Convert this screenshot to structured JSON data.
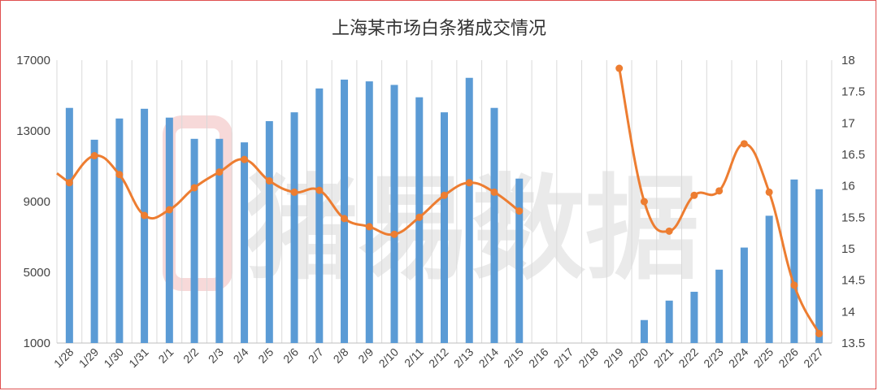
{
  "chart_data": {
    "type": "bar+line",
    "title": "上海某市场白条猪成交情况",
    "categories": [
      "1/28",
      "1/29",
      "1/30",
      "1/31",
      "2/1",
      "2/2",
      "2/3",
      "2/4",
      "2/5",
      "2/6",
      "2/7",
      "2/8",
      "2/9",
      "2/10",
      "2/11",
      "2/12",
      "2/13",
      "2/14",
      "2/15",
      "2/16",
      "2/17",
      "2/18",
      "2/19",
      "2/20",
      "2/21",
      "2/22",
      "2/23",
      "2/24",
      "2/25",
      "2/26",
      "2/27"
    ],
    "series": [
      {
        "type": "bar",
        "axis": "left",
        "color": "#5b9bd5",
        "values": [
          14300,
          12500,
          13700,
          14250,
          13750,
          12550,
          12550,
          12350,
          13550,
          14050,
          15400,
          15900,
          15800,
          15600,
          14900,
          14050,
          16000,
          14300,
          10300,
          null,
          null,
          null,
          null,
          2300,
          3400,
          3900,
          5150,
          6400,
          8200,
          10250,
          9700
        ]
      },
      {
        "type": "line",
        "axis": "right",
        "color": "#ed7d31",
        "values": [
          16.05,
          16.48,
          16.18,
          15.53,
          15.62,
          15.97,
          16.22,
          16.42,
          16.08,
          15.9,
          15.93,
          15.48,
          15.35,
          15.23,
          15.5,
          15.85,
          16.05,
          15.9,
          15.6,
          null,
          null,
          null,
          17.87,
          15.75,
          15.28,
          15.85,
          15.92,
          16.67,
          15.9,
          14.42,
          13.65
        ]
      }
    ],
    "y_left": {
      "min": 1000,
      "max": 17000,
      "ticks": [
        "1000",
        "5000",
        "9000",
        "13000",
        "17000"
      ]
    },
    "y_right": {
      "min": 13.5,
      "max": 18,
      "ticks": [
        "13.5",
        "14",
        "14.5",
        "15",
        "15.5",
        "16",
        "16.5",
        "17",
        "17.5",
        "18"
      ]
    },
    "grid": "vertical",
    "watermark": "猪易数据"
  }
}
